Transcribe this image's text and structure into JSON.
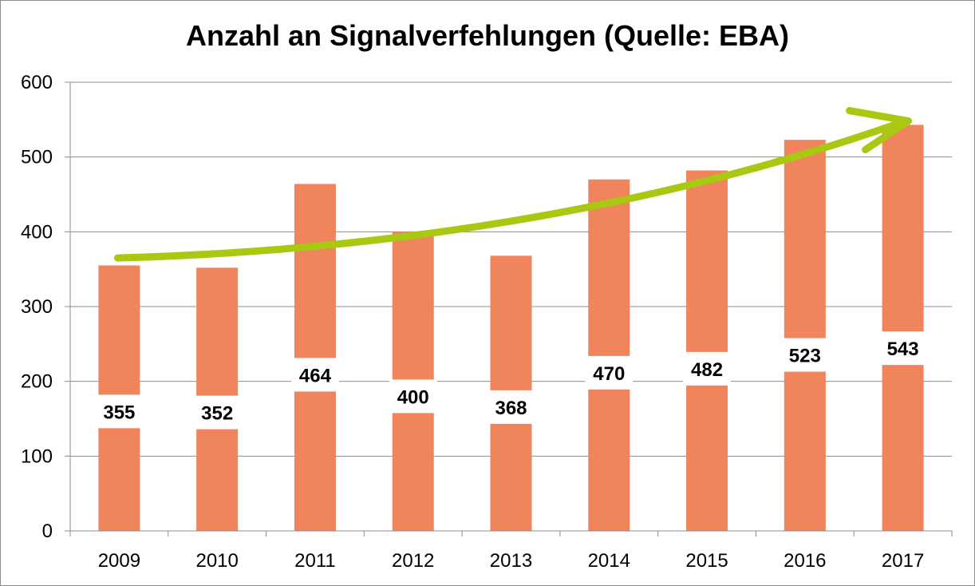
{
  "chart_data": {
    "type": "bar",
    "title": "Anzahl an Signalverfehlungen (Quelle: EBA)",
    "categories": [
      "2009",
      "2010",
      "2011",
      "2012",
      "2013",
      "2014",
      "2015",
      "2016",
      "2017"
    ],
    "values": [
      355,
      352,
      464,
      400,
      368,
      470,
      482,
      523,
      543
    ],
    "data_labels": [
      "355",
      "352",
      "464",
      "400",
      "368",
      "470",
      "482",
      "523",
      "543"
    ],
    "y_ticks": [
      "0",
      "100",
      "200",
      "300",
      "400",
      "500",
      "600"
    ],
    "ylim": [
      0,
      600
    ],
    "grid": true,
    "legend": "none",
    "trend_arrow": {
      "from": 365,
      "to": 545
    },
    "colors": {
      "bar": "#f0845c",
      "arrow": "#a8c812",
      "grid": "#8c8c8c",
      "label_background": "#ffffff"
    }
  }
}
